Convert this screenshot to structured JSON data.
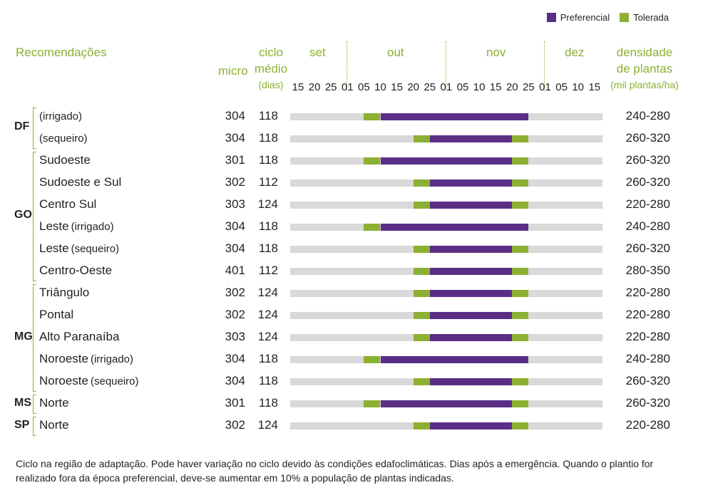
{
  "legend": [
    {
      "label": "Preferencial",
      "color": "#5b2e86"
    },
    {
      "label": "Tolerada",
      "color": "#8cb031"
    }
  ],
  "headers": {
    "recomendacoes": "Recomendações",
    "micro": "micro",
    "ciclo_1": "ciclo",
    "ciclo_2": "médio",
    "ciclo_3": "(dias)",
    "densidade_1": "densidade",
    "densidade_2": "de plantas",
    "densidade_3": "(mil plantas/ha)"
  },
  "months": [
    "set",
    "out",
    "nov",
    "dez"
  ],
  "day_ticks": [
    "15",
    "20",
    "25",
    "01",
    "05",
    "10",
    "15",
    "20",
    "25",
    "01",
    "05",
    "10",
    "15",
    "20",
    "25",
    "01",
    "05",
    "10",
    "15"
  ],
  "states": [
    "DF",
    "GO",
    "MG",
    "MS",
    "SP"
  ],
  "chart_data": {
    "type": "table",
    "columns": [
      "Recomendações",
      "micro",
      "ciclo médio (dias)",
      "Tolerada início",
      "Preferencial início",
      "Preferencial fim",
      "Tolerada fim",
      "densidade de plantas (mil plantas/ha)"
    ],
    "rows": [
      {
        "state": "DF",
        "region": "",
        "sub": "(irrigado)",
        "micro": "304",
        "ciclo": "118",
        "tol_start": "05/out",
        "pref_start": "10/out",
        "pref_end": "25/nov",
        "tol_end": "25/nov",
        "dens": "240-280"
      },
      {
        "state": "DF",
        "region": "",
        "sub": "(sequeiro)",
        "micro": "304",
        "ciclo": "118",
        "tol_start": "20/out",
        "pref_start": "25/out",
        "pref_end": "20/nov",
        "tol_end": "25/nov",
        "dens": "260-320"
      },
      {
        "state": "GO",
        "region": "Sudoeste",
        "sub": "",
        "micro": "301",
        "ciclo": "118",
        "tol_start": "05/out",
        "pref_start": "10/out",
        "pref_end": "20/nov",
        "tol_end": "25/nov",
        "dens": "260-320"
      },
      {
        "state": "GO",
        "region": "Sudoeste e Sul",
        "sub": "",
        "micro": "302",
        "ciclo": "112",
        "tol_start": "20/out",
        "pref_start": "25/out",
        "pref_end": "20/nov",
        "tol_end": "25/nov",
        "dens": "260-320"
      },
      {
        "state": "GO",
        "region": "Centro Sul",
        "sub": "",
        "micro": "303",
        "ciclo": "124",
        "tol_start": "20/out",
        "pref_start": "25/out",
        "pref_end": "20/nov",
        "tol_end": "25/nov",
        "dens": "220-280"
      },
      {
        "state": "GO",
        "region": "Leste",
        "sub": "(irrigado)",
        "micro": "304",
        "ciclo": "118",
        "tol_start": "05/out",
        "pref_start": "10/out",
        "pref_end": "25/nov",
        "tol_end": "25/nov",
        "dens": "240-280"
      },
      {
        "state": "GO",
        "region": "Leste",
        "sub": "(sequeiro)",
        "micro": "304",
        "ciclo": "118",
        "tol_start": "20/out",
        "pref_start": "25/out",
        "pref_end": "20/nov",
        "tol_end": "25/nov",
        "dens": "260-320"
      },
      {
        "state": "GO",
        "region": "Centro-Oeste",
        "sub": "",
        "micro": "401",
        "ciclo": "112",
        "tol_start": "20/out",
        "pref_start": "25/out",
        "pref_end": "20/nov",
        "tol_end": "25/nov",
        "dens": "280-350"
      },
      {
        "state": "MG",
        "region": "Triângulo",
        "sub": "",
        "micro": "302",
        "ciclo": "124",
        "tol_start": "20/out",
        "pref_start": "25/out",
        "pref_end": "20/nov",
        "tol_end": "25/nov",
        "dens": "220-280"
      },
      {
        "state": "MG",
        "region": "Pontal",
        "sub": "",
        "micro": "302",
        "ciclo": "124",
        "tol_start": "20/out",
        "pref_start": "25/out",
        "pref_end": "20/nov",
        "tol_end": "25/nov",
        "dens": "220-280"
      },
      {
        "state": "MG",
        "region": "Alto Paranaíba",
        "sub": "",
        "micro": "303",
        "ciclo": "124",
        "tol_start": "20/out",
        "pref_start": "25/out",
        "pref_end": "20/nov",
        "tol_end": "25/nov",
        "dens": "220-280"
      },
      {
        "state": "MG",
        "region": "Noroeste",
        "sub": "(irrigado)",
        "micro": "304",
        "ciclo": "118",
        "tol_start": "05/out",
        "pref_start": "10/out",
        "pref_end": "25/nov",
        "tol_end": "25/nov",
        "dens": "240-280"
      },
      {
        "state": "MG",
        "region": "Noroeste",
        "sub": "(sequeiro)",
        "micro": "304",
        "ciclo": "118",
        "tol_start": "20/out",
        "pref_start": "25/out",
        "pref_end": "20/nov",
        "tol_end": "25/nov",
        "dens": "260-320"
      },
      {
        "state": "MS",
        "region": "Norte",
        "sub": "",
        "micro": "301",
        "ciclo": "118",
        "tol_start": "05/out",
        "pref_start": "10/out",
        "pref_end": "20/nov",
        "tol_end": "25/nov",
        "dens": "260-320"
      },
      {
        "state": "SP",
        "region": "Norte",
        "sub": "",
        "micro": "302",
        "ciclo": "124",
        "tol_start": "20/out",
        "pref_start": "25/out",
        "pref_end": "20/nov",
        "tol_end": "25/nov",
        "dens": "220-280"
      }
    ]
  },
  "footnote": "Ciclo na região de adaptação. Pode haver variação no ciclo devido às condições edafoclimáticas. Dias após a emergência. Quando o plantio for realizado fora da época preferencial, deve-se aumentar em 10% a população de plantas indicadas."
}
